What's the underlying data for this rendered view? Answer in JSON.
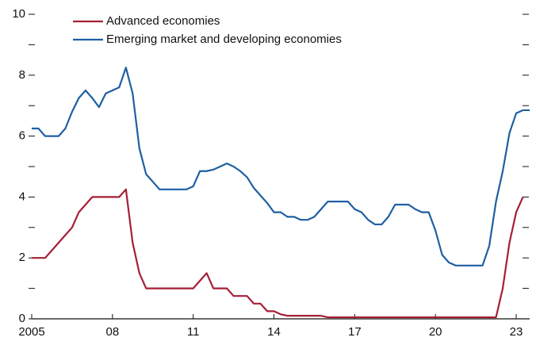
{
  "chart_data": {
    "type": "line",
    "x": [
      2005,
      2005.25,
      2005.5,
      2005.75,
      2006,
      2006.25,
      2006.5,
      2006.75,
      2007,
      2007.25,
      2007.5,
      2007.75,
      2008,
      2008.25,
      2008.5,
      2008.75,
      2009,
      2009.25,
      2009.5,
      2009.75,
      2010,
      2010.25,
      2010.5,
      2010.75,
      2011,
      2011.25,
      2011.5,
      2011.75,
      2012,
      2012.25,
      2012.5,
      2012.75,
      2013,
      2013.25,
      2013.5,
      2013.75,
      2014,
      2014.25,
      2014.5,
      2014.75,
      2015,
      2015.25,
      2015.5,
      2015.75,
      2016,
      2016.25,
      2016.5,
      2016.75,
      2017,
      2017.25,
      2017.5,
      2017.75,
      2018,
      2018.25,
      2018.5,
      2018.75,
      2019,
      2019.25,
      2019.5,
      2019.75,
      2020,
      2020.25,
      2020.5,
      2020.75,
      2021,
      2021.25,
      2021.5,
      2021.75,
      2022,
      2022.25,
      2022.5,
      2022.75,
      2023,
      2023.25,
      2023.5
    ],
    "series": [
      {
        "name": "Advanced economies",
        "color": "#a51f36",
        "values": [
          2,
          2,
          2,
          2.25,
          2.5,
          2.75,
          3,
          3.5,
          3.75,
          4,
          4,
          4,
          4,
          4,
          4.25,
          2.5,
          1.5,
          1,
          1,
          1,
          1,
          1,
          1,
          1,
          1,
          1.25,
          1.5,
          1,
          1,
          1,
          0.75,
          0.75,
          0.75,
          0.5,
          0.5,
          0.25,
          0.25,
          0.15,
          0.1,
          0.1,
          0.1,
          0.1,
          0.1,
          0.1,
          0.05,
          0.05,
          0.05,
          0.05,
          0.05,
          0.05,
          0.05,
          0.05,
          0.05,
          0.05,
          0.05,
          0.05,
          0.05,
          0.05,
          0.05,
          0.05,
          0.05,
          0.05,
          0.05,
          0.05,
          0.05,
          0.05,
          0.05,
          0.05,
          0.05,
          0.05,
          1,
          2.5,
          3.5,
          4,
          null
        ]
      },
      {
        "name": "Emerging market and developing economies",
        "color": "#1f5fa3",
        "values": [
          6.25,
          6.25,
          6,
          6,
          6,
          6.25,
          6.8,
          7.25,
          7.5,
          7.25,
          6.95,
          7.4,
          7.5,
          7.6,
          8.25,
          7.4,
          5.6,
          4.75,
          4.5,
          4.25,
          4.25,
          4.25,
          4.25,
          4.25,
          4.35,
          4.85,
          4.85,
          4.9,
          5,
          5.1,
          5,
          4.85,
          4.65,
          4.3,
          4.05,
          3.8,
          3.5,
          3.5,
          3.35,
          3.35,
          3.25,
          3.25,
          3.35,
          3.6,
          3.85,
          3.85,
          3.85,
          3.85,
          3.6,
          3.5,
          3.25,
          3.1,
          3.1,
          3.35,
          3.75,
          3.75,
          3.75,
          3.6,
          3.5,
          3.5,
          2.9,
          2.1,
          1.85,
          1.75,
          1.75,
          1.75,
          1.75,
          1.75,
          2.4,
          3.85,
          4.85,
          6.1,
          6.75,
          6.85,
          6.85
        ]
      }
    ],
    "xlim": [
      2005,
      2023.5
    ],
    "xticks": [
      {
        "value": 2005,
        "label": "2005"
      },
      {
        "value": 2008,
        "label": "08"
      },
      {
        "value": 2011,
        "label": "11"
      },
      {
        "value": 2014,
        "label": "14"
      },
      {
        "value": 2017,
        "label": "17"
      },
      {
        "value": 2020,
        "label": "20"
      },
      {
        "value": 2023,
        "label": "23"
      }
    ],
    "ylim": [
      0,
      10
    ],
    "yticks": [
      0,
      2,
      4,
      6,
      8,
      10
    ],
    "yminorticks": [
      1,
      3,
      5,
      7,
      9
    ]
  }
}
